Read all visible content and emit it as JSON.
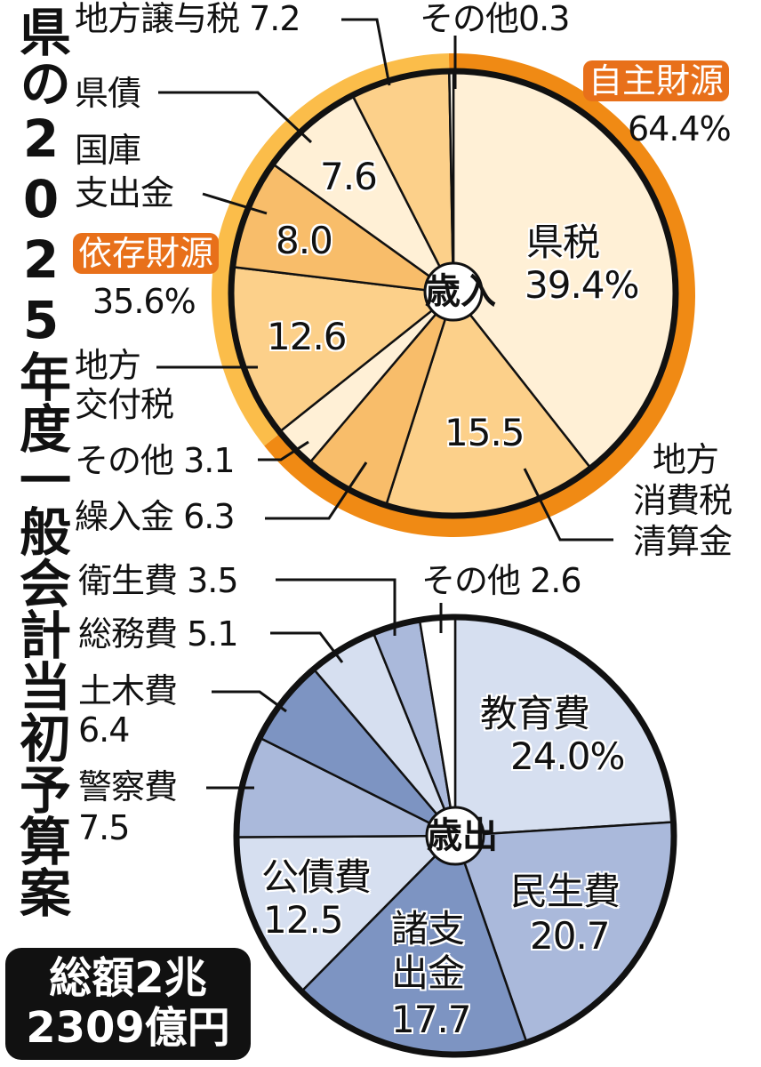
{
  "title": "県の2025年度一般会計当初予算案",
  "total": {
    "line1": "総額2兆",
    "line2": "2309億円"
  },
  "revenue": {
    "center_label": "歳入",
    "groups": [
      {
        "name": "自主財源",
        "pct_label": "64.4%",
        "value": 64.4,
        "color": "#f08a14"
      },
      {
        "name": "依存財源",
        "pct_label": "35.6%",
        "value": 35.6,
        "color": "#fbbd4a"
      }
    ],
    "labels": {
      "kenzei": "県税",
      "kenzei_pct": "39.4%",
      "chihou_shouhizei": [
        "地方",
        "消費税",
        "清算金"
      ],
      "chihou_shouhizei_val": "15.5",
      "kurinyuukin": "繰入金 6.3",
      "sonota_31": "その他 3.1",
      "koufuzei": [
        "地方",
        "交付税"
      ],
      "koufuzei_val": "12.6",
      "kokko": [
        "国庫",
        "支出金"
      ],
      "kokko_val": "8.0",
      "kensai": "県債",
      "kensai_val": "7.6",
      "jouyozei": "地方譲与税 7.2",
      "sonota_03": "その他0.3"
    }
  },
  "expenditure": {
    "center_label": "歳出",
    "labels": {
      "kyouiku": "教育費",
      "kyouiku_pct": "24.0%",
      "minsei": "民生費",
      "minsei_val": "20.7",
      "shoshishutsu": [
        "諸支",
        "出金"
      ],
      "shoshishutsu_val": "17.7",
      "kousai": "公債費",
      "kousai_val": "12.5",
      "keisatsu": "警察費",
      "keisatsu_val": "7.5",
      "doboku": "土木費",
      "doboku_val": "6.4",
      "soumu": "総務費 5.1",
      "eisei": "衛生費 3.5",
      "sonota": "その他 2.6"
    }
  },
  "chart_data": [
    {
      "type": "pie",
      "title": "歳入",
      "unit": "%",
      "start_angle": "top, clockwise",
      "categories": [
        "県税",
        "地方消費税清算金",
        "繰入金",
        "その他",
        "地方交付税",
        "国庫支出金",
        "県債",
        "地方譲与税",
        "その他"
      ],
      "values": [
        39.4,
        15.5,
        6.3,
        3.1,
        12.6,
        8.0,
        7.6,
        7.2,
        0.3
      ],
      "colors": [
        "#fff0d6",
        "#fcd08a",
        "#f8bd6a",
        "#fff0d6",
        "#fcd08a",
        "#f8bd6a",
        "#fff0d6",
        "#fcd08a",
        "#fffaf0"
      ],
      "groups": [
        {
          "name": "自主財源",
          "value": 64.4,
          "members": [
            "県税",
            "地方消費税清算金",
            "繰入金",
            "その他3.1",
            "その他0.3"
          ]
        },
        {
          "name": "依存財源",
          "value": 35.6,
          "members": [
            "地方交付税",
            "国庫支出金",
            "県債",
            "地方譲与税"
          ]
        }
      ]
    },
    {
      "type": "pie",
      "title": "歳出",
      "unit": "%",
      "start_angle": "top, clockwise",
      "categories": [
        "教育費",
        "民生費",
        "諸支出金",
        "公債費",
        "警察費",
        "土木費",
        "総務費",
        "衛生費",
        "その他"
      ],
      "values": [
        24.0,
        20.7,
        17.7,
        12.5,
        7.5,
        6.4,
        5.1,
        3.5,
        2.6
      ],
      "colors": [
        "#d6dff0",
        "#aab9db",
        "#7d94c2",
        "#d6dff0",
        "#aab9db",
        "#7d94c2",
        "#d6dff0",
        "#aab9db",
        "#ffffff"
      ]
    }
  ],
  "total_budget": "2兆2309億円"
}
